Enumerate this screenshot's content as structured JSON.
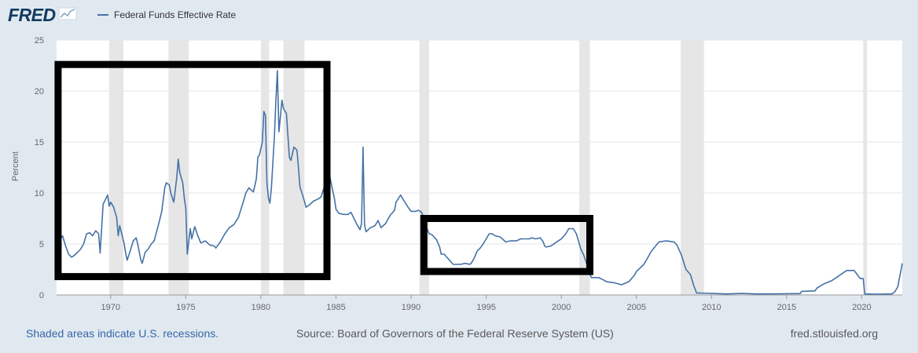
{
  "header": {
    "logo_text": "FRED",
    "logo_mark": "fred-chart-icon",
    "series_color": "#4572a7"
  },
  "footer": {
    "recessions_note": "Shaded areas indicate U.S. recessions.",
    "source": "Source: Board of Governors of the Federal Reserve System (US)",
    "site": "fred.stlouisfed.org"
  },
  "chart_data": {
    "type": "line",
    "title": "",
    "xlabel": "",
    "ylabel": "Percent",
    "xlim": [
      1966.4,
      2022.7
    ],
    "ylim": [
      0,
      25
    ],
    "grid": true,
    "legend": "top-left",
    "x_ticks": [
      "1970",
      "1975",
      "1980",
      "1985",
      "1990",
      "1995",
      "2000",
      "2005",
      "2010",
      "2015",
      "2020"
    ],
    "y_ticks": [
      "0",
      "5",
      "10",
      "15",
      "20",
      "25"
    ],
    "recessions": [
      [
        1969.9,
        1970.85
      ],
      [
        1973.85,
        1975.2
      ],
      [
        1980.0,
        1980.55
      ],
      [
        1981.5,
        1982.9
      ],
      [
        1990.55,
        1991.2
      ],
      [
        2001.2,
        2001.9
      ],
      [
        2007.95,
        2009.5
      ],
      [
        2020.1,
        2020.35
      ]
    ],
    "annotation_boxes": [
      {
        "x": [
          1966.5,
          1984.4
        ],
        "y": [
          1.8,
          22.6
        ]
      },
      {
        "x": [
          1990.85,
          2001.9
        ],
        "y": [
          2.3,
          7.5
        ]
      }
    ],
    "series": [
      {
        "name": "Federal Funds Effective Rate",
        "color": "#4572a7",
        "points": [
          [
            1966.4,
            4.6
          ],
          [
            1966.6,
            5.4
          ],
          [
            1966.8,
            5.8
          ],
          [
            1967.0,
            4.8
          ],
          [
            1967.2,
            4.0
          ],
          [
            1967.4,
            3.7
          ],
          [
            1967.6,
            3.9
          ],
          [
            1967.8,
            4.2
          ],
          [
            1968.0,
            4.5
          ],
          [
            1968.2,
            5.0
          ],
          [
            1968.4,
            6.0
          ],
          [
            1968.6,
            6.1
          ],
          [
            1968.8,
            5.8
          ],
          [
            1969.0,
            6.3
          ],
          [
            1969.2,
            6.0
          ],
          [
            1969.3,
            4.1
          ],
          [
            1969.5,
            8.9
          ],
          [
            1969.6,
            9.2
          ],
          [
            1969.8,
            9.8
          ],
          [
            1969.9,
            8.7
          ],
          [
            1970.0,
            9.1
          ],
          [
            1970.2,
            8.6
          ],
          [
            1970.4,
            7.6
          ],
          [
            1970.5,
            5.8
          ],
          [
            1970.6,
            6.8
          ],
          [
            1970.8,
            5.6
          ],
          [
            1970.9,
            5.0
          ],
          [
            1971.0,
            4.1
          ],
          [
            1971.1,
            3.4
          ],
          [
            1971.3,
            4.3
          ],
          [
            1971.5,
            5.3
          ],
          [
            1971.7,
            5.6
          ],
          [
            1971.8,
            5.0
          ],
          [
            1972.0,
            3.5
          ],
          [
            1972.1,
            3.1
          ],
          [
            1972.3,
            4.2
          ],
          [
            1972.5,
            4.5
          ],
          [
            1972.7,
            5.0
          ],
          [
            1972.9,
            5.3
          ],
          [
            1973.0,
            5.9
          ],
          [
            1973.2,
            7.0
          ],
          [
            1973.4,
            8.2
          ],
          [
            1973.6,
            10.5
          ],
          [
            1973.7,
            11.0
          ],
          [
            1973.9,
            10.8
          ],
          [
            1974.0,
            10.0
          ],
          [
            1974.2,
            9.1
          ],
          [
            1974.4,
            11.5
          ],
          [
            1974.5,
            13.3
          ],
          [
            1974.6,
            12.0
          ],
          [
            1974.8,
            11.0
          ],
          [
            1974.9,
            9.5
          ],
          [
            1975.0,
            8.5
          ],
          [
            1975.1,
            4.0
          ],
          [
            1975.3,
            6.5
          ],
          [
            1975.4,
            5.5
          ],
          [
            1975.6,
            6.7
          ],
          [
            1975.8,
            5.8
          ],
          [
            1976.0,
            5.1
          ],
          [
            1976.3,
            5.3
          ],
          [
            1976.6,
            4.9
          ],
          [
            1976.9,
            4.8
          ],
          [
            1977.0,
            4.6
          ],
          [
            1977.3,
            5.2
          ],
          [
            1977.6,
            6.0
          ],
          [
            1977.9,
            6.6
          ],
          [
            1978.2,
            6.9
          ],
          [
            1978.5,
            7.6
          ],
          [
            1978.8,
            9.0
          ],
          [
            1979.0,
            10.0
          ],
          [
            1979.2,
            10.5
          ],
          [
            1979.5,
            10.1
          ],
          [
            1979.7,
            11.4
          ],
          [
            1979.8,
            13.5
          ],
          [
            1979.9,
            13.7
          ],
          [
            1980.1,
            15.0
          ],
          [
            1980.2,
            18.0
          ],
          [
            1980.3,
            17.6
          ],
          [
            1980.4,
            11.0
          ],
          [
            1980.5,
            9.5
          ],
          [
            1980.6,
            9.0
          ],
          [
            1980.7,
            10.5
          ],
          [
            1980.9,
            15.5
          ],
          [
            1981.0,
            19.0
          ],
          [
            1981.1,
            22.0
          ],
          [
            1981.2,
            16.0
          ],
          [
            1981.3,
            17.5
          ],
          [
            1981.4,
            19.1
          ],
          [
            1981.5,
            18.3
          ],
          [
            1981.7,
            17.8
          ],
          [
            1981.9,
            13.5
          ],
          [
            1982.0,
            13.2
          ],
          [
            1982.2,
            14.5
          ],
          [
            1982.4,
            14.2
          ],
          [
            1982.5,
            12.5
          ],
          [
            1982.6,
            10.6
          ],
          [
            1982.8,
            9.7
          ],
          [
            1982.9,
            9.2
          ],
          [
            1983.0,
            8.6
          ],
          [
            1983.2,
            8.8
          ],
          [
            1983.5,
            9.2
          ],
          [
            1983.8,
            9.4
          ],
          [
            1984.0,
            9.6
          ],
          [
            1984.2,
            10.5
          ],
          [
            1984.4,
            11.3
          ],
          [
            1984.5,
            11.8
          ],
          [
            1984.6,
            11.6
          ],
          [
            1984.7,
            10.8
          ],
          [
            1984.9,
            9.4
          ],
          [
            1985.0,
            8.4
          ],
          [
            1985.2,
            8.0
          ],
          [
            1985.5,
            7.9
          ],
          [
            1985.8,
            7.9
          ],
          [
            1986.0,
            8.1
          ],
          [
            1986.2,
            7.5
          ],
          [
            1986.4,
            6.9
          ],
          [
            1986.6,
            6.4
          ],
          [
            1986.7,
            7.0
          ],
          [
            1986.8,
            14.5
          ],
          [
            1986.9,
            6.9
          ],
          [
            1987.0,
            6.2
          ],
          [
            1987.3,
            6.6
          ],
          [
            1987.6,
            6.8
          ],
          [
            1987.8,
            7.3
          ],
          [
            1988.0,
            6.6
          ],
          [
            1988.3,
            7.0
          ],
          [
            1988.6,
            7.8
          ],
          [
            1988.9,
            8.3
          ],
          [
            1989.0,
            9.1
          ],
          [
            1989.3,
            9.8
          ],
          [
            1989.5,
            9.3
          ],
          [
            1989.8,
            8.6
          ],
          [
            1990.0,
            8.2
          ],
          [
            1990.3,
            8.2
          ],
          [
            1990.5,
            8.3
          ],
          [
            1990.7,
            8.1
          ],
          [
            1990.9,
            7.4
          ],
          [
            1991.0,
            6.7
          ],
          [
            1991.2,
            6.0
          ],
          [
            1991.4,
            5.9
          ],
          [
            1991.7,
            5.4
          ],
          [
            1991.9,
            4.7
          ],
          [
            1992.0,
            4.0
          ],
          [
            1992.2,
            4.0
          ],
          [
            1992.5,
            3.5
          ],
          [
            1992.8,
            3.0
          ],
          [
            1993.0,
            3.0
          ],
          [
            1993.3,
            3.0
          ],
          [
            1993.6,
            3.1
          ],
          [
            1993.9,
            3.0
          ],
          [
            1994.0,
            3.1
          ],
          [
            1994.2,
            3.6
          ],
          [
            1994.4,
            4.3
          ],
          [
            1994.6,
            4.6
          ],
          [
            1994.8,
            5.0
          ],
          [
            1995.0,
            5.5
          ],
          [
            1995.2,
            6.0
          ],
          [
            1995.4,
            6.0
          ],
          [
            1995.6,
            5.8
          ],
          [
            1995.9,
            5.7
          ],
          [
            1996.0,
            5.6
          ],
          [
            1996.3,
            5.2
          ],
          [
            1996.6,
            5.3
          ],
          [
            1996.9,
            5.3
          ],
          [
            1997.0,
            5.3
          ],
          [
            1997.3,
            5.5
          ],
          [
            1997.6,
            5.5
          ],
          [
            1997.9,
            5.5
          ],
          [
            1998.0,
            5.6
          ],
          [
            1998.3,
            5.5
          ],
          [
            1998.6,
            5.6
          ],
          [
            1998.8,
            5.2
          ],
          [
            1998.9,
            4.8
          ],
          [
            1999.0,
            4.7
          ],
          [
            1999.3,
            4.8
          ],
          [
            1999.6,
            5.1
          ],
          [
            1999.9,
            5.4
          ],
          [
            2000.0,
            5.5
          ],
          [
            2000.3,
            6.0
          ],
          [
            2000.5,
            6.5
          ],
          [
            2000.8,
            6.5
          ],
          [
            2001.0,
            6.0
          ],
          [
            2001.1,
            5.5
          ],
          [
            2001.3,
            4.5
          ],
          [
            2001.5,
            3.9
          ],
          [
            2001.7,
            3.0
          ],
          [
            2001.9,
            2.1
          ],
          [
            2002.0,
            1.7
          ],
          [
            2002.5,
            1.7
          ],
          [
            2002.9,
            1.4
          ],
          [
            2003.0,
            1.3
          ],
          [
            2003.5,
            1.2
          ],
          [
            2004.0,
            1.0
          ],
          [
            2004.5,
            1.3
          ],
          [
            2004.9,
            2.0
          ],
          [
            2005.0,
            2.3
          ],
          [
            2005.5,
            3.0
          ],
          [
            2006.0,
            4.3
          ],
          [
            2006.5,
            5.2
          ],
          [
            2007.0,
            5.3
          ],
          [
            2007.5,
            5.2
          ],
          [
            2007.7,
            4.9
          ],
          [
            2008.0,
            3.9
          ],
          [
            2008.3,
            2.5
          ],
          [
            2008.6,
            2.0
          ],
          [
            2008.8,
            1.0
          ],
          [
            2009.0,
            0.2
          ],
          [
            2010.0,
            0.15
          ],
          [
            2011.0,
            0.1
          ],
          [
            2012.0,
            0.15
          ],
          [
            2013.0,
            0.1
          ],
          [
            2014.0,
            0.1
          ],
          [
            2015.0,
            0.12
          ],
          [
            2015.9,
            0.13
          ],
          [
            2016.0,
            0.35
          ],
          [
            2016.9,
            0.4
          ],
          [
            2017.0,
            0.66
          ],
          [
            2017.5,
            1.1
          ],
          [
            2018.0,
            1.4
          ],
          [
            2018.5,
            1.9
          ],
          [
            2019.0,
            2.4
          ],
          [
            2019.5,
            2.4
          ],
          [
            2019.7,
            2.0
          ],
          [
            2019.9,
            1.6
          ],
          [
            2020.1,
            1.6
          ],
          [
            2020.2,
            0.1
          ],
          [
            2021.0,
            0.08
          ],
          [
            2022.0,
            0.1
          ],
          [
            2022.2,
            0.3
          ],
          [
            2022.4,
            0.8
          ],
          [
            2022.5,
            1.6
          ],
          [
            2022.6,
            2.3
          ],
          [
            2022.7,
            3.1
          ]
        ]
      }
    ]
  }
}
